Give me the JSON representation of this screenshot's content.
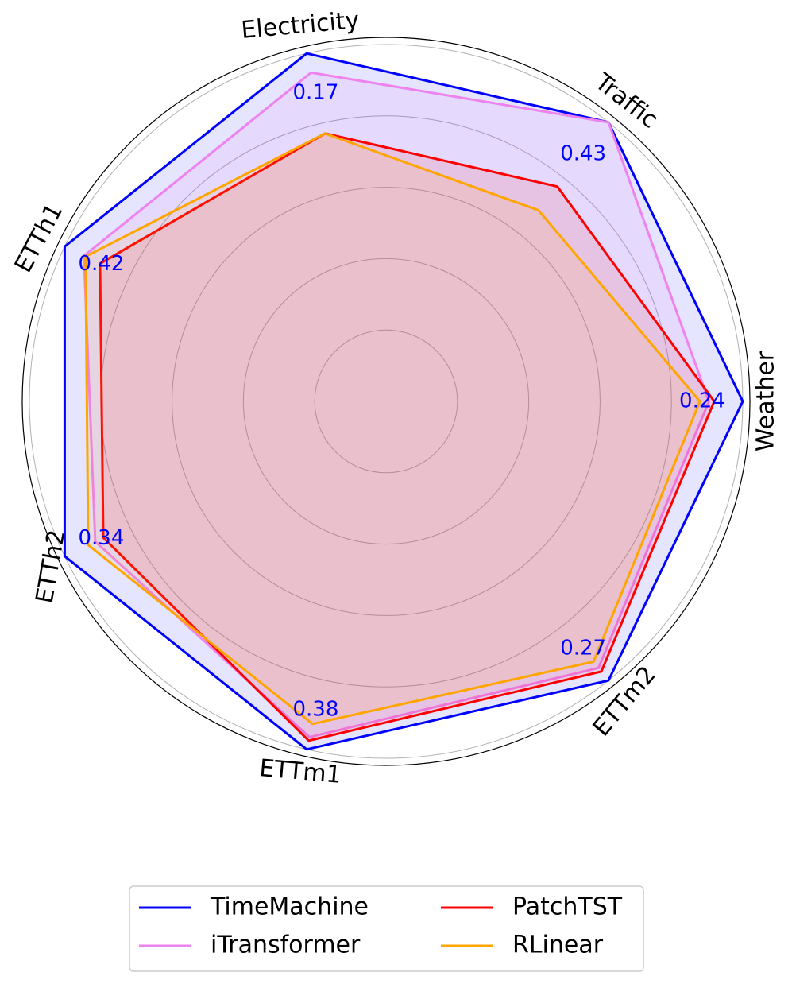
{
  "chart_data": {
    "type": "radar",
    "categories": [
      "Weather",
      "Traffic",
      "Electricity",
      "ETTh1",
      "ETTh2",
      "ETTm1",
      "ETTm2"
    ],
    "value_annotations": [
      0.24,
      0.43,
      0.17,
      0.42,
      0.34,
      0.38,
      0.27
    ],
    "annotation_color": "#0000ff",
    "series": [
      {
        "name": "TimeMachine",
        "color": "#0000ff",
        "values": [
          1.0,
          1.0,
          1.0,
          1.0,
          1.0,
          1.0,
          1.0
        ]
      },
      {
        "name": "iTransformer",
        "color": "#ee82ee",
        "values": [
          0.905,
          1.0,
          0.945,
          0.94,
          0.905,
          0.965,
          0.955
        ]
      },
      {
        "name": "PatchTST",
        "color": "#ff0000",
        "values": [
          0.92,
          0.77,
          0.77,
          0.89,
          0.88,
          0.975,
          0.968
        ]
      },
      {
        "name": "RLinear",
        "color": "#ffa500",
        "values": [
          0.88,
          0.685,
          0.77,
          0.935,
          0.927,
          0.927,
          0.933
        ]
      }
    ],
    "ylim": [
      0,
      1.02
    ],
    "yticks": [
      0.2,
      0.4,
      0.6,
      0.8,
      1.0
    ],
    "grid": true,
    "legend": "bottom"
  }
}
